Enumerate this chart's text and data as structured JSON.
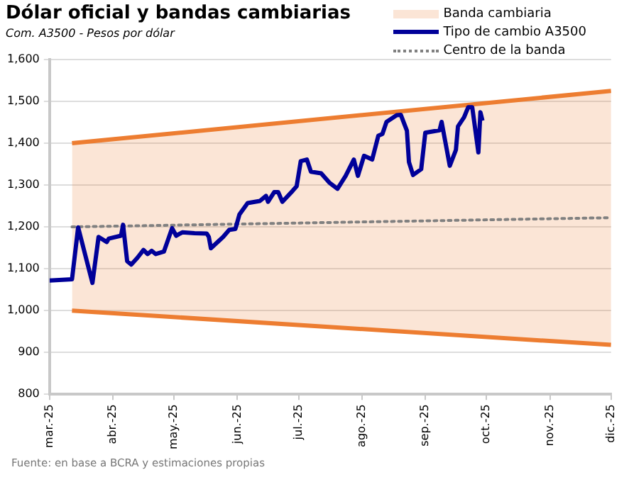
{
  "chart_data": {
    "type": "line",
    "title": "Dólar oficial y bandas cambiarias",
    "subtitle": "Com. A3500 - Pesos por dólar",
    "series": [
      {
        "name": "Banda cambiaria",
        "type": "area",
        "color": "#ed7d31",
        "x": [
          "2025-03-12",
          "2025-12-01"
        ],
        "values": [
          1400,
          1525
        ]
      },
      {
        "type": "line",
        "color": "#ed7d31",
        "x": [
          "2025-03-12",
          "2025-12-01"
        ],
        "values": [
          1000,
          918
        ]
      },
      {
        "name": "Tipo de cambio A3500",
        "type": "line",
        "color": "#000099",
        "x": [
          "2025-03-01",
          "2025-03-12",
          "2025-03-15",
          "2025-03-22",
          "2025-03-25",
          "2025-03-29",
          "2025-03-30",
          "2025-04-05",
          "2025-04-06",
          "2025-04-08",
          "2025-04-10",
          "2025-04-13",
          "2025-04-16",
          "2025-04-18",
          "2025-04-20",
          "2025-04-22",
          "2025-04-26",
          "2025-04-30",
          "2025-05-02",
          "2025-05-05",
          "2025-05-11",
          "2025-05-17",
          "2025-05-18",
          "2025-05-19",
          "2025-05-25",
          "2025-05-28",
          "2025-05-31",
          "2025-06-02",
          "2025-06-06",
          "2025-06-12",
          "2025-06-15",
          "2025-06-16",
          "2025-06-19",
          "2025-06-21",
          "2025-06-23",
          "2025-06-28",
          "2025-06-30",
          "2025-07-02",
          "2025-07-05",
          "2025-07-07",
          "2025-07-12",
          "2025-07-16",
          "2025-07-20",
          "2025-07-24",
          "2025-07-28",
          "2025-07-30",
          "2025-08-02",
          "2025-08-06",
          "2025-08-09",
          "2025-08-11",
          "2025-08-13",
          "2025-08-18",
          "2025-08-20",
          "2025-08-23",
          "2025-08-24",
          "2025-08-26",
          "2025-08-30",
          "2025-09-01",
          "2025-09-08",
          "2025-09-09",
          "2025-09-13",
          "2025-09-16",
          "2025-09-17",
          "2025-09-20",
          "2025-09-22",
          "2025-09-24",
          "2025-09-27",
          "2025-09-28",
          "2025-09-29"
        ],
        "values": [
          1072,
          1075,
          1199,
          1066,
          1176,
          1164,
          1172,
          1179,
          1205,
          1118,
          1110,
          1126,
          1145,
          1135,
          1143,
          1135,
          1141,
          1197,
          1179,
          1187,
          1185,
          1184,
          1176,
          1149,
          1176,
          1193,
          1195,
          1230,
          1257,
          1262,
          1274,
          1260,
          1283,
          1283,
          1260,
          1286,
          1297,
          1357,
          1361,
          1332,
          1328,
          1306,
          1291,
          1322,
          1361,
          1322,
          1370,
          1361,
          1418,
          1422,
          1451,
          1467,
          1468,
          1430,
          1355,
          1324,
          1338,
          1425,
          1431,
          1451,
          1346,
          1384,
          1440,
          1462,
          1486,
          1486,
          1378,
          1474,
          1454
        ]
      },
      {
        "name": "Centro de la banda",
        "type": "line",
        "color": "#808080",
        "line_style": "dotted",
        "x": [
          "2025-03-12",
          "2025-12-01"
        ],
        "values": [
          1200,
          1222
        ]
      }
    ],
    "xlim": [
      "2025-03-01",
      "2025-12-01"
    ],
    "xticks": [
      {
        "value": "2025-03-01",
        "label": "mar.-25"
      },
      {
        "value": "2025-04-01",
        "label": "abr.-25"
      },
      {
        "value": "2025-05-01",
        "label": "may.-25"
      },
      {
        "value": "2025-06-01",
        "label": "jun.-25"
      },
      {
        "value": "2025-07-01",
        "label": "jul.-25"
      },
      {
        "value": "2025-08-01",
        "label": "ago.-25"
      },
      {
        "value": "2025-09-01",
        "label": "sep.-25"
      },
      {
        "value": "2025-10-01",
        "label": "oct.-25"
      },
      {
        "value": "2025-11-01",
        "label": "nov.-25"
      },
      {
        "value": "2025-12-01",
        "label": "dic.-25"
      }
    ],
    "ylim": [
      800,
      1600
    ],
    "yticks": [
      {
        "value": 800,
        "label": "800"
      },
      {
        "value": 900,
        "label": "900"
      },
      {
        "value": 1000,
        "label": "1,000"
      },
      {
        "value": 1100,
        "label": "1,100"
      },
      {
        "value": 1200,
        "label": "1,200"
      },
      {
        "value": 1300,
        "label": "1,300"
      },
      {
        "value": 1400,
        "label": "1,400"
      },
      {
        "value": 1500,
        "label": "1,500"
      },
      {
        "value": 1600,
        "label": "1,600"
      }
    ],
    "grid": "y",
    "legend": "top right",
    "marker": "none",
    "annotations": [
      "Fuente: en base a BCRA y estimaciones propias"
    ]
  }
}
